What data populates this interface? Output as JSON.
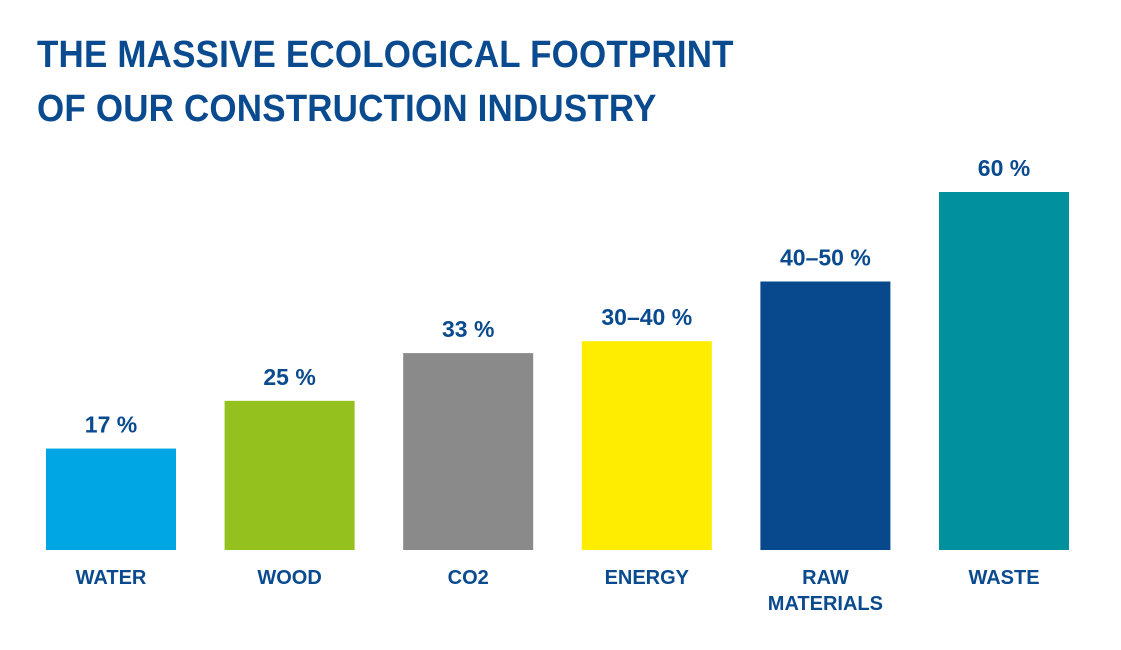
{
  "chart_data": {
    "type": "bar",
    "title_lines": [
      "THE MASSIVE ECOLOGICAL FOOTPRINT",
      "OF OUR CONSTRUCTION INDUSTRY"
    ],
    "categories": [
      [
        "WATER"
      ],
      [
        "WOOD"
      ],
      [
        "CO2"
      ],
      [
        "ENERGY"
      ],
      [
        "RAW",
        "MATERIALS"
      ],
      [
        "WASTE"
      ]
    ],
    "values": [
      17,
      25,
      33,
      35,
      45,
      60
    ],
    "value_labels": [
      "17 %",
      "25 %",
      "33 %",
      "30–40 %",
      "40–50 %",
      "60 %"
    ],
    "colors": [
      "#00a6e4",
      "#95c11f",
      "#8a8a8a",
      "#ffed00",
      "#08488d",
      "#00909e"
    ],
    "ylim": [
      0,
      60
    ],
    "grid": false,
    "legend": "none"
  }
}
